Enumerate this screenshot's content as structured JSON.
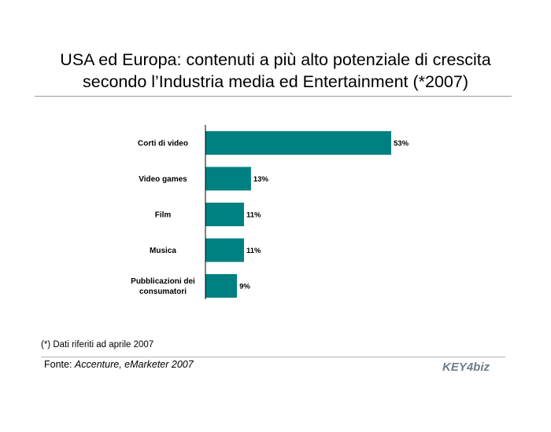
{
  "title_line1": "USA ed Europa: contenuti a più alto potenziale di crescita",
  "title_line2": "secondo l’Industria media ed Entertainment (*2007)",
  "footnote": "(*) Dati riferiti ad aprile 2007",
  "source": {
    "label": "Fonte:",
    "value": "Accenture, eMarketer 2007"
  },
  "logo": {
    "text": "KEY4biz",
    "color": "#6f7d87"
  },
  "chart_data": {
    "type": "bar",
    "orientation": "horizontal",
    "categories": [
      [
        "Corti di video"
      ],
      [
        "Video games"
      ],
      [
        "Film"
      ],
      [
        "Musica"
      ],
      [
        "Pubblicazioni dei",
        "consumatori"
      ]
    ],
    "values": [
      53,
      13,
      11,
      11,
      9
    ],
    "value_labels": [
      "53%",
      "13%",
      "11%",
      "11%",
      "9%"
    ],
    "unit": "%",
    "xlim": [
      0,
      53
    ],
    "grid": false,
    "legend": "none",
    "bar_color": "#008080"
  }
}
